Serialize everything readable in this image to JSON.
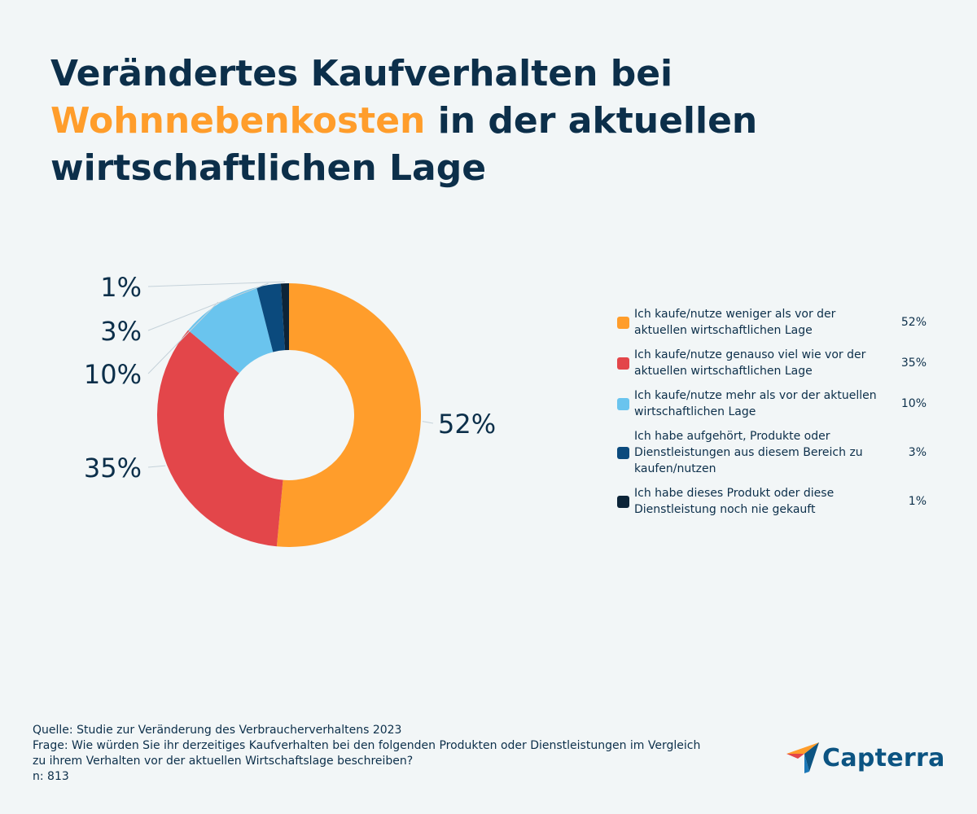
{
  "title": {
    "part1": "Verändertes Kaufverhalten bei ",
    "highlight": "Wohnnebenkosten",
    "part2": " in der aktuellen wirtschaftlichen Lage"
  },
  "chart_data": {
    "type": "pie",
    "categories": [
      "Ich kaufe/nutze weniger als vor der aktuellen wirtschaftlichen Lage",
      "Ich kaufe/nutze genauso viel wie vor der aktuellen wirtschaftlichen Lage",
      "Ich kaufe/nutze mehr als vor der aktuellen wirtschaftlichen Lage",
      "Ich habe aufgehört, Produkte oder Dienstleistungen aus diesem Bereich zu kaufen/nutzen",
      "Ich habe dieses Produkt oder diese Dienstleistung noch nie gekauft"
    ],
    "values": [
      52,
      35,
      10,
      3,
      1
    ],
    "value_labels": [
      "52%",
      "35%",
      "10%",
      "3%",
      "1%"
    ],
    "colors": [
      "#ff9d2b",
      "#e3464a",
      "#6ac4ee",
      "#0b4a7d",
      "#0c2438"
    ],
    "legend_placement": "right"
  },
  "footer": {
    "source": "Quelle: Studie zur Veränderung des Verbraucherverhaltens 2023",
    "question": "Frage: Wie würden Sie ihr derzeitiges Kaufverhalten bei den folgenden Produkten oder Dienstleistungen im Vergleich\nzu ihrem Verhalten vor der aktuellen Wirtschaftslage beschreiben?",
    "n": "n: 813"
  },
  "logo": {
    "text": "Capterra",
    "icon": "capterra-logo-icon"
  }
}
